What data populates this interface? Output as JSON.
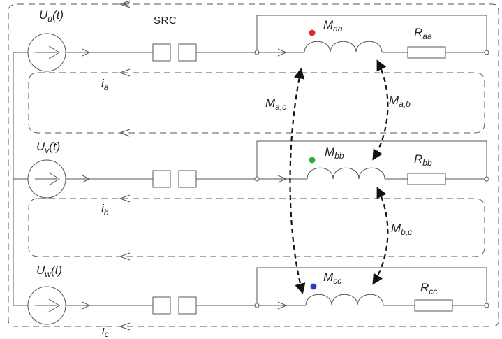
{
  "sources": [
    {
      "main": "U",
      "sub": "u",
      "tail": "(t)"
    },
    {
      "main": "U",
      "sub": "v",
      "tail": "(t)"
    },
    {
      "main": "U",
      "sub": "w",
      "tail": "(t)"
    }
  ],
  "src_label": "SRC",
  "currents": [
    {
      "main": "i",
      "sub": "a"
    },
    {
      "main": "i",
      "sub": "b"
    },
    {
      "main": "i",
      "sub": "c"
    }
  ],
  "self_inductances": [
    {
      "main": "M",
      "sub": "aa"
    },
    {
      "main": "M",
      "sub": "bb"
    },
    {
      "main": "M",
      "sub": "cc"
    }
  ],
  "resistances": [
    {
      "main": "R",
      "sub": "aa"
    },
    {
      "main": "R",
      "sub": "bb"
    },
    {
      "main": "R",
      "sub": "cc"
    }
  ],
  "mutual_inductances": [
    {
      "main": "M",
      "sub": "a,c"
    },
    {
      "main": "M",
      "sub": "a,b"
    },
    {
      "main": "M",
      "sub": "b,c"
    }
  ],
  "dot_colors": [
    "#e02828",
    "#2aa84a",
    "#2b3fb0"
  ],
  "line_color": "#555555",
  "arrow_color": "#111111"
}
